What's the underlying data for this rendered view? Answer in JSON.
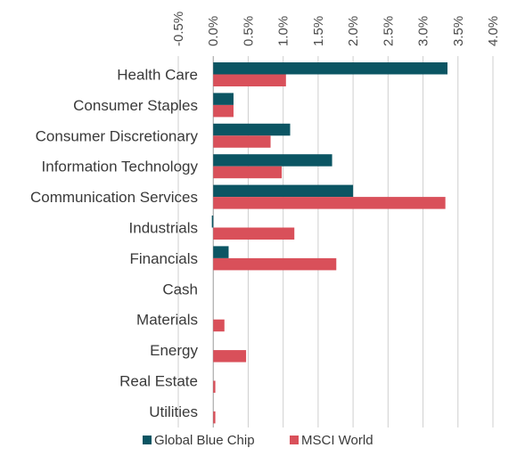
{
  "chart_data": {
    "type": "bar",
    "orientation": "horizontal",
    "categories": [
      "Health Care",
      "Consumer Staples",
      "Consumer Discretionary",
      "Information Technology",
      "Communication Services",
      "Industrials",
      "Financials",
      "Cash",
      "Materials",
      "Energy",
      "Real Estate",
      "Utilities"
    ],
    "series": [
      {
        "name": "Global Blue Chip",
        "color": "#0b5563",
        "values": [
          3.35,
          0.29,
          1.1,
          1.7,
          2.0,
          -0.02,
          0.22,
          0,
          0,
          0,
          0,
          0
        ]
      },
      {
        "name": "MSCI World",
        "color": "#d9505a",
        "values": [
          1.04,
          0.29,
          0.82,
          0.98,
          3.32,
          1.16,
          1.76,
          0,
          0.16,
          0.47,
          0.03,
          0.03
        ]
      }
    ],
    "x_ticks": [
      "-0.5%",
      "0.0%",
      "0.5%",
      "1.0%",
      "1.5%",
      "2.0%",
      "2.5%",
      "3.0%",
      "3.5%",
      "4.0%"
    ],
    "tick_values": [
      -0.5,
      0,
      0.5,
      1.0,
      1.5,
      2.0,
      2.5,
      3.0,
      3.5,
      4.0
    ],
    "xlim": [
      -0.5,
      4.0
    ],
    "grid": true,
    "legend_position": "bottom",
    "title": "",
    "xlabel": "",
    "ylabel": ""
  }
}
